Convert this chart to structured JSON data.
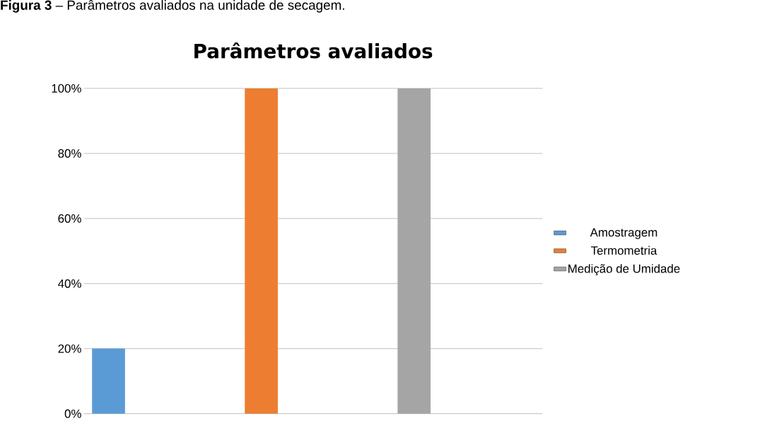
{
  "chart_data": {
    "type": "bar",
    "title": "Parâmetros avaliados",
    "annotations": [
      "**Figura 3** – Parâmetros avaliados na unidade de secagem."
    ],
    "categories": [
      null,
      null,
      null
    ],
    "series": [
      {
        "name": "Amostragem",
        "color": "#5b9bd5",
        "values": [
          20,
          null,
          null
        ]
      },
      {
        "name": "Termometria",
        "color": "#ed7d31",
        "values": [
          null,
          100,
          null
        ]
      },
      {
        "name": "Medição de Umidade",
        "color": "#a5a5a5",
        "values": [
          null,
          null,
          100
        ]
      }
    ],
    "ylim": [
      0,
      100
    ],
    "yticks": [
      {
        "value": 0,
        "label": "0%"
      },
      {
        "value": 20,
        "label": "20%"
      },
      {
        "value": 40,
        "label": "40%"
      },
      {
        "value": 60,
        "label": "60%"
      },
      {
        "value": 80,
        "label": "80%"
      },
      {
        "value": 100,
        "label": "100%"
      }
    ],
    "grid": "y",
    "legend": "right"
  }
}
